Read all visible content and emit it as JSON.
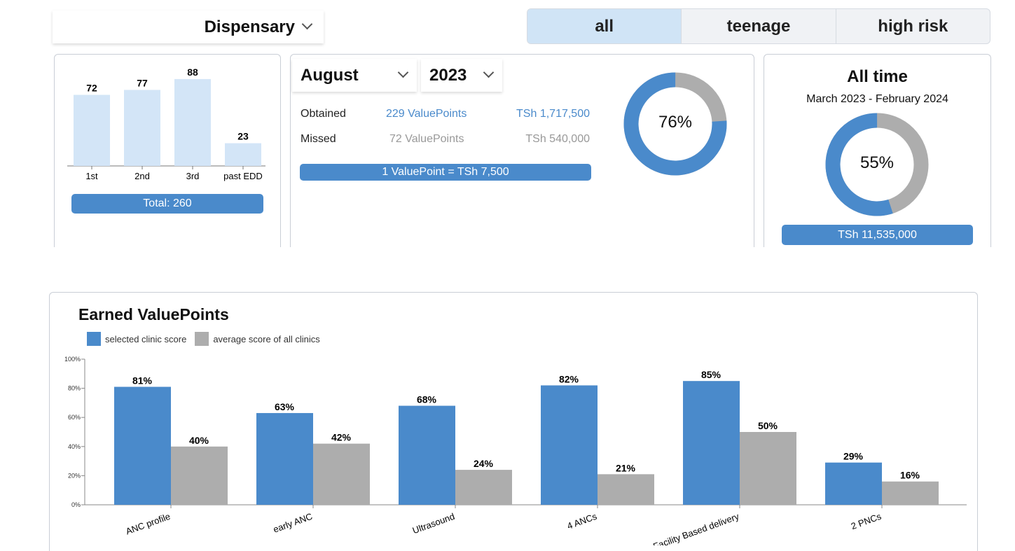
{
  "facility_select": {
    "value": "Dispensary"
  },
  "segments": [
    {
      "label": "all",
      "active": true
    },
    {
      "label": "teenage",
      "active": false
    },
    {
      "label": "high risk",
      "active": false
    }
  ],
  "trimester_chart": {
    "type": "bar",
    "categories": [
      "1st",
      "2nd",
      "3rd",
      "past EDD"
    ],
    "values": [
      72,
      77,
      88,
      23
    ],
    "total_label": "Total: 260",
    "color": "#d3e5f7"
  },
  "monthly": {
    "month": "August",
    "year": "2023",
    "obtained": {
      "label": "Obtained",
      "points": "229 ValuePoints",
      "amount": "TSh 1,717,500"
    },
    "missed": {
      "label": "Missed",
      "points": "72 ValuePoints",
      "amount": "TSh 540,000"
    },
    "rate_label": "1 ValuePoint = TSh 7,500",
    "percent": 76,
    "percent_label": "76%"
  },
  "all_time": {
    "title": "All time",
    "range": "March 2023 - February 2024",
    "percent": 55,
    "percent_label": "55%",
    "amount": "TSh 11,535,000"
  },
  "colors": {
    "blue": "#4a8acb",
    "gray": "#adadad",
    "light_blue": "#d3e5f7"
  },
  "chart_data": {
    "type": "bar",
    "title": "Earned ValuePoints",
    "categories": [
      "ANC profile",
      "early ANC",
      "Ultrasound",
      "4 ANCs",
      "Facility Based delivery",
      "2 PNCs"
    ],
    "series": [
      {
        "name": "selected clinic score",
        "values": [
          81,
          63,
          68,
          82,
          85,
          29
        ],
        "color": "#4a8acb"
      },
      {
        "name": "average score of all clinics",
        "values": [
          40,
          42,
          24,
          21,
          50,
          16
        ],
        "color": "#adadad"
      }
    ],
    "yticks": [
      "0%",
      "20%",
      "40%",
      "60%",
      "80%",
      "100%"
    ],
    "ylim": [
      0,
      100
    ],
    "legend": "top-left",
    "grid": false
  }
}
